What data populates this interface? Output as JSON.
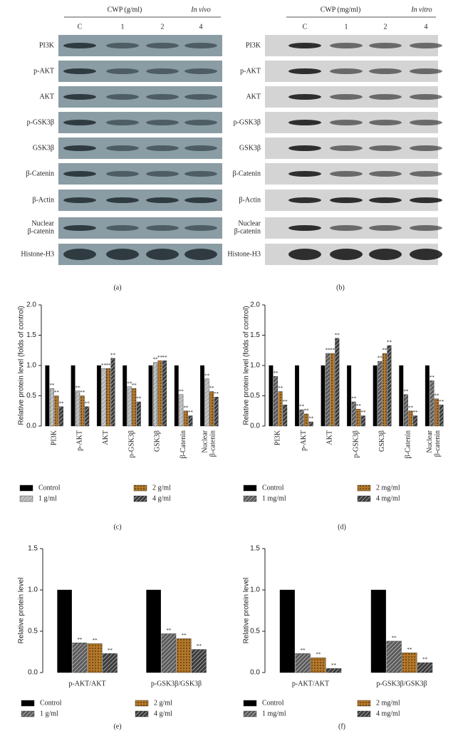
{
  "blots": [
    {
      "label": "(a)",
      "treatment": "CWP (g/ml)",
      "model": "In vivo",
      "lanes": [
        "C",
        "1",
        "2",
        "4"
      ],
      "proteins": [
        "PI3K",
        "p-AKT",
        "AKT",
        "p-GSK3β",
        "GSK3β",
        "β-Catenin",
        "β-Actin",
        "Nuclear β-catenin",
        "Histone-H3"
      ]
    },
    {
      "label": "(b)",
      "treatment": "CWP (mg/ml)",
      "model": "In vitro",
      "lanes": [
        "C",
        "1",
        "2",
        "4"
      ],
      "proteins": [
        "PI3K",
        "p-AKT",
        "AKT",
        "p-GSK3β",
        "GSK3β",
        "β-Catenin",
        "β-Actin",
        "Nuclear β-catenin",
        "Histone-H3"
      ]
    }
  ],
  "chart_data": [
    {
      "type": "bar",
      "label": "(c)",
      "y_label": "Relative protein level (folds of control)",
      "rotate_labels": true,
      "categories": [
        "PI3K",
        "p-AKT",
        "AKT",
        "p-GSK3β",
        "GSK3β",
        "β-Catenin",
        "Nuclear β-catenin"
      ],
      "ylim": [
        0,
        2
      ],
      "yticks": [
        {
          "value": 0,
          "label": "0.0"
        },
        0.5,
        {
          "value": 1,
          "label": "1.0"
        },
        1.5,
        {
          "value": 2,
          "label": "2.0"
        }
      ],
      "series": [
        {
          "name": "Control",
          "color": "#000000",
          "pattern": "solid",
          "values": [
            1,
            1,
            1,
            1,
            1,
            1,
            1
          ]
        },
        {
          "name": "1 g/ml",
          "color": "#b0b0b0",
          "pattern": "hatch",
          "values": [
            0.62,
            0.58,
            0.95,
            0.65,
            1.05,
            0.52,
            0.78
          ],
          "annotations": [
            "**",
            "**",
            "**",
            "**",
            "**",
            "**",
            "**"
          ]
        },
        {
          "name": "2 g/ml",
          "color": "#b5782a",
          "pattern": "dots",
          "values": [
            0.5,
            0.5,
            0.95,
            0.62,
            1.08,
            0.25,
            0.57
          ],
          "annotations": [
            "**",
            "**",
            "**",
            "**",
            "**",
            "**",
            "**"
          ]
        },
        {
          "name": "4 g/ml",
          "color": "#3a3a3a",
          "pattern": "hatch",
          "values": [
            0.32,
            0.32,
            1.12,
            0.4,
            1.08,
            0.17,
            0.48
          ],
          "annotations": [
            "**",
            "**",
            "**",
            "**",
            "**",
            "**",
            "**"
          ]
        }
      ]
    },
    {
      "type": "bar",
      "label": "(d)",
      "y_label": "Relative protein level (folds of control)",
      "rotate_labels": true,
      "categories": [
        "PI3K",
        "p-AKT",
        "AKT",
        "p-GSK3β",
        "GSK3β",
        "β-Catenin",
        "Nuclear β-catenin"
      ],
      "ylim": [
        0,
        2
      ],
      "yticks": [
        {
          "value": 0,
          "label": "0.0"
        },
        0.5,
        {
          "value": 1,
          "label": "1.0"
        },
        1.5,
        {
          "value": 2,
          "label": "2.0"
        }
      ],
      "series": [
        {
          "name": "Control",
          "color": "#000000",
          "pattern": "solid",
          "values": [
            1,
            1,
            1,
            1,
            1,
            1,
            1
          ]
        },
        {
          "name": "1 mg/ml",
          "color": "#5a5a5a",
          "pattern": "hatch",
          "values": [
            0.82,
            0.27,
            1.2,
            0.4,
            1.07,
            0.52,
            0.75
          ],
          "annotations": [
            "**",
            "**",
            "**",
            "**",
            "**",
            "**",
            "**"
          ]
        },
        {
          "name": "2 mg/ml",
          "color": "#b5782a",
          "pattern": "dots",
          "values": [
            0.57,
            0.2,
            1.2,
            0.28,
            1.2,
            0.25,
            0.45
          ],
          "annotations": [
            "**",
            "**",
            "**",
            "**",
            "**",
            "**",
            "**"
          ]
        },
        {
          "name": "4 mg/ml",
          "color": "#3a3a3a",
          "pattern": "hatch",
          "values": [
            0.35,
            0.07,
            1.45,
            0.17,
            1.33,
            0.17,
            0.35
          ],
          "annotations": [
            "**",
            "**",
            "**",
            "**",
            "**",
            "**",
            "**"
          ]
        }
      ]
    },
    {
      "type": "bar",
      "label": "(e)",
      "y_label": "Relative protein level",
      "rotate_labels": false,
      "categories": [
        "p-AKT/AKT",
        "p-GSK3β/GSK3β"
      ],
      "ylim": [
        0,
        1.5
      ],
      "yticks": [
        {
          "value": 0,
          "label": "0.0"
        },
        0.5,
        {
          "value": 1,
          "label": "1.0"
        },
        1.5
      ],
      "series": [
        {
          "name": "Control",
          "color": "#000000",
          "pattern": "solid",
          "values": [
            1,
            1
          ]
        },
        {
          "name": "1 g/ml",
          "color": "#5a5a5a",
          "pattern": "hatch",
          "values": [
            0.36,
            0.47
          ],
          "annotations": [
            "**",
            "**"
          ]
        },
        {
          "name": "2 g/ml",
          "color": "#b5782a",
          "pattern": "dots",
          "values": [
            0.35,
            0.41
          ],
          "annotations": [
            "**",
            "**"
          ]
        },
        {
          "name": "4 g/ml",
          "color": "#3a3a3a",
          "pattern": "hatch",
          "values": [
            0.23,
            0.28
          ],
          "annotations": [
            "**",
            "**"
          ]
        }
      ]
    },
    {
      "type": "bar",
      "label": "(f)",
      "y_label": "Relative protein level",
      "rotate_labels": false,
      "categories": [
        "p-AKT/AKT",
        "p-GSK3β/GSK3β"
      ],
      "ylim": [
        0,
        1.5
      ],
      "yticks": [
        {
          "value": 0,
          "label": "0.0"
        },
        0.5,
        {
          "value": 1,
          "label": "1.0"
        },
        1.5
      ],
      "series": [
        {
          "name": "Control",
          "color": "#000000",
          "pattern": "solid",
          "values": [
            1,
            1
          ]
        },
        {
          "name": "1 mg/ml",
          "color": "#5a5a5a",
          "pattern": "hatch",
          "values": [
            0.23,
            0.38
          ],
          "annotations": [
            "**",
            "**"
          ]
        },
        {
          "name": "2 mg/ml",
          "color": "#b5782a",
          "pattern": "dots",
          "values": [
            0.18,
            0.24
          ],
          "annotations": [
            "**",
            "**"
          ]
        },
        {
          "name": "4 mg/ml",
          "color": "#3a3a3a",
          "pattern": "hatch",
          "values": [
            0.05,
            0.12
          ],
          "annotations": [
            "**",
            "**"
          ]
        }
      ]
    }
  ]
}
